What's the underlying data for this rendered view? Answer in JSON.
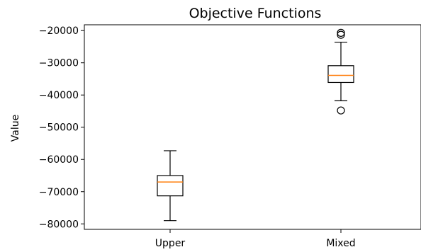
{
  "chart_data": {
    "type": "box",
    "title": "Objective Functions",
    "xlabel": "",
    "ylabel": "Value",
    "ylim": [
      -81700,
      -18200
    ],
    "yticks": [
      -20000,
      -30000,
      -40000,
      -50000,
      -60000,
      -70000,
      -80000
    ],
    "ytick_labels": [
      "−20000",
      "−30000",
      "−40000",
      "−50000",
      "−60000",
      "−70000",
      "−80000"
    ],
    "categories": [
      "Upper",
      "Mixed"
    ],
    "boxes": [
      {
        "name": "Upper",
        "whisker_low": -79000,
        "q1": -71300,
        "median": -67000,
        "q3": -65000,
        "whisker_high": -57300,
        "outliers": []
      },
      {
        "name": "Mixed",
        "whisker_low": -41800,
        "q1": -36100,
        "median": -33900,
        "q3": -30900,
        "whisker_high": -23600,
        "outliers": [
          -20700,
          -21300,
          -44800
        ]
      }
    ],
    "colors": {
      "box": "#000000",
      "median": "#ff7f0e",
      "background": "#ffffff"
    },
    "grid": false
  }
}
